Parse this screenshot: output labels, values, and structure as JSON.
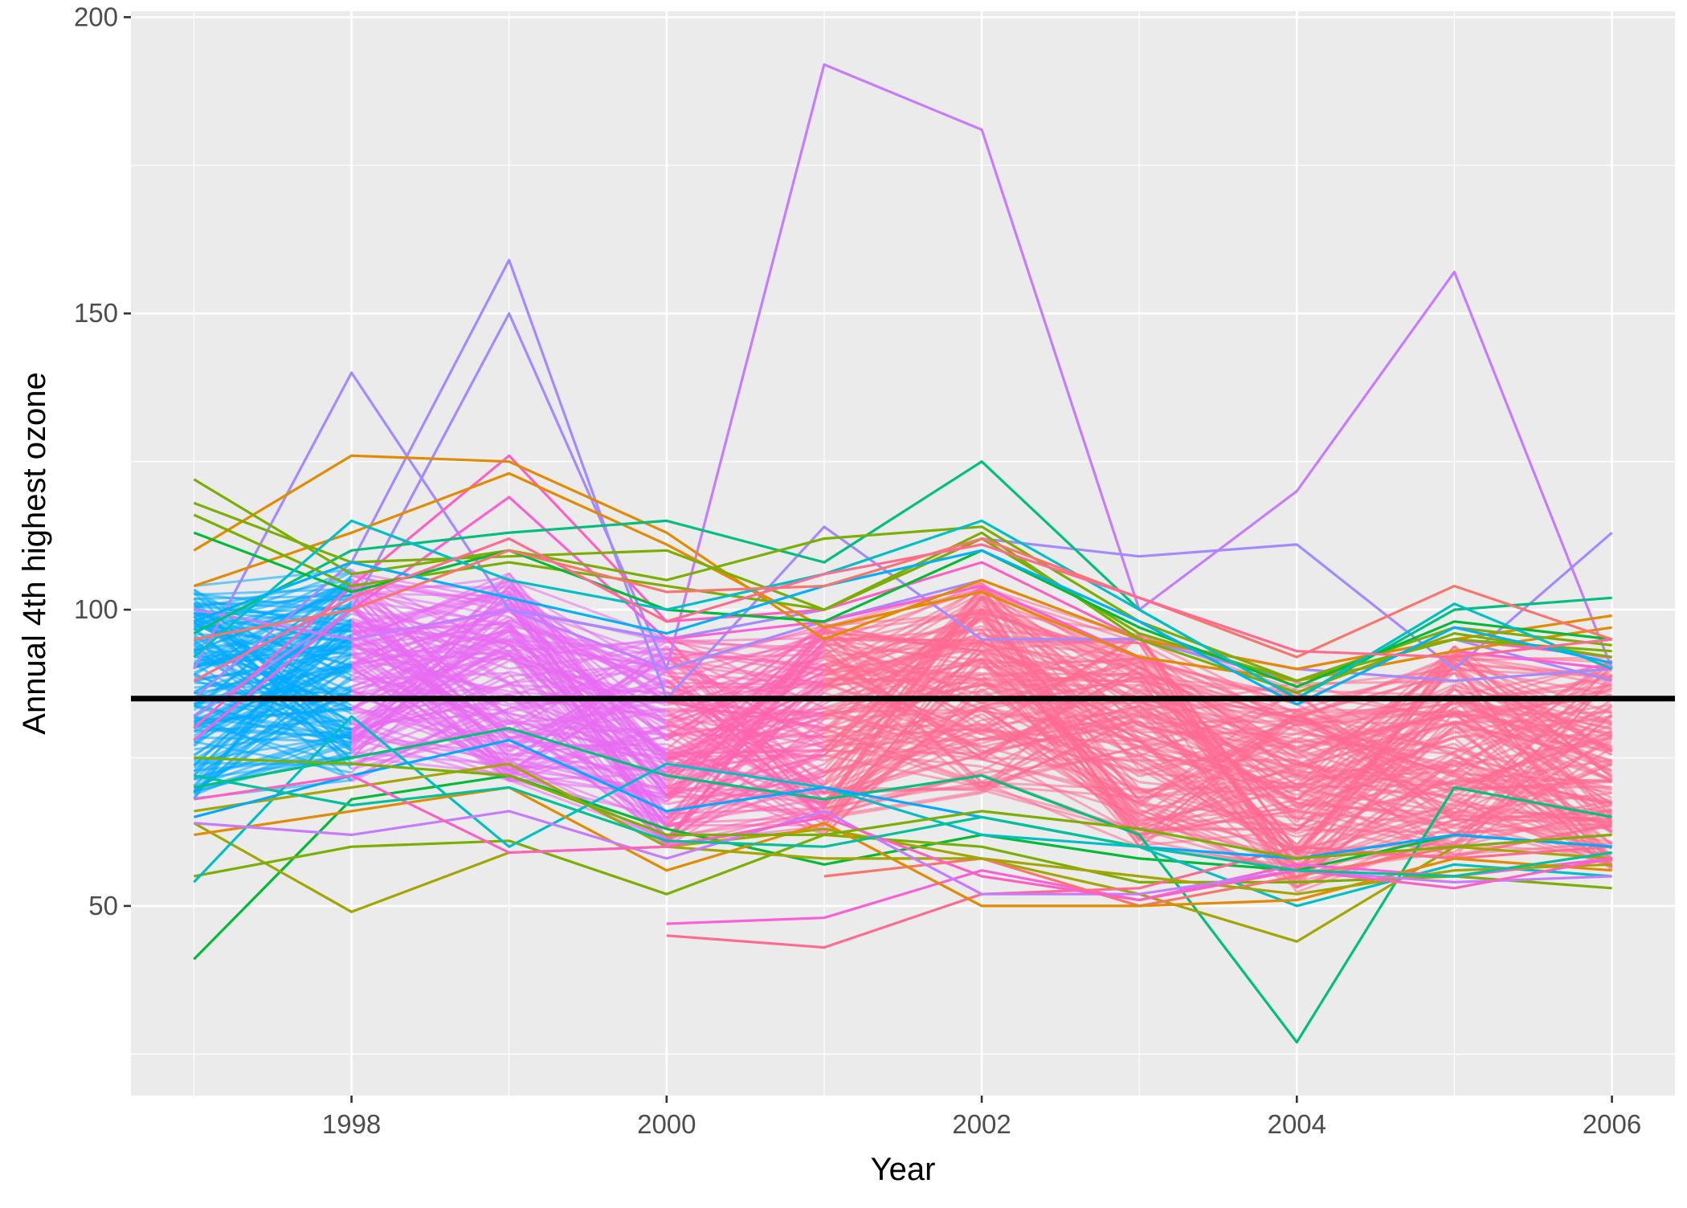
{
  "chart_data": {
    "type": "line",
    "title": "",
    "xlabel": "Year",
    "ylabel": "Annual 4th highest ozone",
    "xlim": [
      1996.6,
      2006.4
    ],
    "ylim": [
      18,
      201
    ],
    "x_ticks": [
      1998,
      2000,
      2002,
      2004,
      2006
    ],
    "y_ticks": [
      50,
      100,
      150,
      200
    ],
    "x_tick_labels": [
      "1998",
      "2000",
      "2002",
      "2004",
      "2006"
    ],
    "y_tick_labels": [
      "50",
      "100",
      "150",
      "200"
    ],
    "grid": true,
    "legend": "none",
    "background": "#EBEBEB",
    "grid_major_color": "#FFFFFF",
    "reference_line": {
      "y": 85,
      "color": "#000000"
    },
    "x": [
      1997,
      1998,
      1999,
      2000,
      2001,
      2002,
      2003,
      2004,
      2005,
      2006
    ],
    "series": [
      {
        "color": "#C77CFF",
        "values": [
          100,
          95,
          100,
          90,
          192,
          181,
          100,
          120,
          157,
          90
        ]
      },
      {
        "color": "#A58AFF",
        "values": [
          90,
          140,
          100,
          95,
          100,
          112,
          109,
          111,
          90,
          113
        ]
      },
      {
        "color": "#A58AFF",
        "values": [
          85,
          108,
          159,
          85,
          114,
          95,
          95,
          90,
          88,
          90
        ]
      },
      {
        "color": "#A58AFF",
        "values": [
          82,
          100,
          150,
          90,
          98,
          105,
          95,
          88,
          95,
          88
        ]
      },
      {
        "color": "#FF61C3",
        "values": [
          80,
          104,
          126,
          98,
          100,
          108,
          95,
          90,
          95,
          92
        ]
      },
      {
        "color": "#FB61D7",
        "values": [
          78,
          100,
          119,
          95,
          98,
          104,
          92,
          88,
          93,
          90
        ]
      },
      {
        "color": "#E08B00",
        "values": [
          110,
          126,
          125,
          113,
          95,
          105,
          95,
          90,
          95,
          99
        ]
      },
      {
        "color": "#E08B00",
        "values": [
          104,
          113,
          123,
          111,
          97,
          103,
          92,
          88,
          93,
          97
        ]
      },
      {
        "color": "#00BF7D",
        "values": [
          96,
          110,
          113,
          115,
          108,
          125,
          100,
          85,
          100,
          102
        ]
      },
      {
        "color": "#7CAE00",
        "values": [
          122,
          106,
          110,
          105,
          112,
          114,
          98,
          88,
          97,
          94
        ]
      },
      {
        "color": "#7CAE00",
        "values": [
          118,
          108,
          109,
          110,
          100,
          113,
          95,
          86,
          96,
          92
        ]
      },
      {
        "color": "#7CAE00",
        "values": [
          116,
          104,
          108,
          104,
          100,
          112,
          96,
          88,
          95,
          93
        ]
      },
      {
        "color": "#00BA38",
        "values": [
          113,
          103,
          110,
          100,
          98,
          110,
          97,
          87,
          98,
          95
        ]
      },
      {
        "color": "#00BFC4",
        "values": [
          92,
          115,
          105,
          100,
          106,
          115,
          100,
          85,
          101,
          90
        ]
      },
      {
        "color": "#00B0F6",
        "values": [
          98,
          108,
          102,
          96,
          104,
          110,
          98,
          84,
          97,
          91
        ]
      },
      {
        "color": "#F8766D",
        "values": [
          95,
          100,
          110,
          103,
          104,
          112,
          102,
          92,
          104,
          95
        ]
      },
      {
        "color": "#FF6C91",
        "values": [
          88,
          102,
          112,
          98,
          106,
          111,
          102,
          93,
          92,
          95
        ]
      },
      {
        "color": "#00BA38",
        "values": [
          41,
          68,
          72,
          63,
          57,
          62,
          58,
          56,
          62,
          60
        ]
      },
      {
        "color": "#00BF7D",
        "values": [
          70,
          75,
          80,
          72,
          68,
          72,
          62,
          27,
          70,
          65
        ]
      },
      {
        "color": "#A3A500",
        "values": [
          64,
          49,
          59,
          60,
          63,
          58,
          52,
          44,
          60,
          58
        ]
      },
      {
        "color": "#7CAE00",
        "values": [
          55,
          60,
          61,
          52,
          62,
          60,
          54,
          54,
          55,
          53
        ]
      },
      {
        "color": "#00BFC4",
        "values": [
          54,
          82,
          60,
          74,
          70,
          62,
          60,
          50,
          57,
          55
        ]
      },
      {
        "color": "#FF6C91",
        "values": [
          null,
          null,
          null,
          45,
          43,
          52,
          53,
          60,
          58,
          60
        ]
      },
      {
        "color": "#FB61D7",
        "values": [
          null,
          null,
          null,
          47,
          48,
          56,
          51,
          57,
          55,
          58
        ]
      },
      {
        "color": "#F8766D",
        "values": [
          null,
          null,
          null,
          null,
          55,
          58,
          50,
          55,
          60,
          62
        ]
      },
      {
        "color": "#E08B00",
        "values": [
          62,
          66,
          70,
          56,
          64,
          50,
          50,
          51,
          58,
          56
        ]
      },
      {
        "color": "#A3A500",
        "values": [
          66,
          70,
          74,
          60,
          58,
          58,
          55,
          52,
          56,
          57
        ]
      },
      {
        "color": "#00A9FF",
        "values": [
          65,
          72,
          78,
          66,
          70,
          65,
          60,
          58,
          62,
          60
        ]
      },
      {
        "color": "#C77CFF",
        "values": [
          64,
          62,
          66,
          58,
          66,
          52,
          52,
          56,
          54,
          55
        ]
      },
      {
        "color": "#FF61C3",
        "values": [
          68,
          72,
          59,
          60,
          65,
          55,
          51,
          56,
          53,
          58
        ]
      },
      {
        "color": "#00C19A",
        "values": [
          72,
          67,
          70,
          61,
          60,
          65,
          60,
          56,
          55,
          59
        ]
      },
      {
        "color": "#7CAE00",
        "values": [
          75,
          74,
          72,
          62,
          62,
          66,
          63,
          58,
          60,
          62
        ]
      }
    ]
  }
}
